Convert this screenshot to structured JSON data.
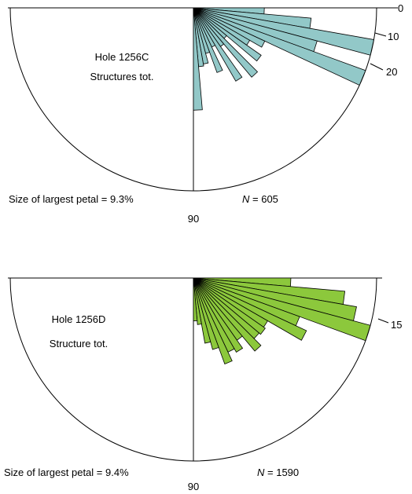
{
  "chart_data": [
    {
      "type": "rose",
      "title": "Hole 1256C",
      "subtitle": "Structures tot.",
      "angle_unit": "degrees",
      "direction_range": [
        0,
        90
      ],
      "direction_tick_labels": [
        "0",
        "90"
      ],
      "radial_ticks": [
        {
          "direction": 10,
          "label": "10"
        },
        {
          "direction": 20,
          "label": "20"
        }
      ],
      "petal_width_deg": 5,
      "petals": [
        {
          "direction": 0,
          "percent": 3.6
        },
        {
          "direction": 5,
          "percent": 6.0
        },
        {
          "direction": 10,
          "percent": 9.3
        },
        {
          "direction": 15,
          "percent": 6.5
        },
        {
          "direction": 20,
          "percent": 9.3
        },
        {
          "direction": 25,
          "percent": 4.0
        },
        {
          "direction": 30,
          "percent": 3.3
        },
        {
          "direction": 35,
          "percent": 4.2
        },
        {
          "direction": 40,
          "percent": 2.2
        },
        {
          "direction": 45,
          "percent": 4.6
        },
        {
          "direction": 50,
          "percent": 2.4
        },
        {
          "direction": 55,
          "percent": 4.3
        },
        {
          "direction": 60,
          "percent": 2.2
        },
        {
          "direction": 65,
          "percent": 3.5
        },
        {
          "direction": 70,
          "percent": 2.4
        },
        {
          "direction": 75,
          "percent": 2.9
        },
        {
          "direction": 80,
          "percent": 3.0
        },
        {
          "direction": 85,
          "percent": 5.2
        }
      ],
      "largest_petal_label": "Size of largest petal = 9.3%",
      "largest_petal_percent": 9.3,
      "n_prefix": "N",
      "n_value": "605",
      "color": "#92c8c8"
    },
    {
      "type": "rose",
      "title": "Hole 1256D",
      "subtitle": "Structure tot.",
      "angle_unit": "degrees",
      "direction_range": [
        0,
        90
      ],
      "direction_tick_labels": [
        "90"
      ],
      "radial_ticks": [
        {
          "direction": 15,
          "label": "15"
        }
      ],
      "petal_width_deg": 5,
      "petals": [
        {
          "direction": 0,
          "percent": 5.0
        },
        {
          "direction": 5,
          "percent": 7.8
        },
        {
          "direction": 10,
          "percent": 8.5
        },
        {
          "direction": 15,
          "percent": 9.4
        },
        {
          "direction": 20,
          "percent": 5.8
        },
        {
          "direction": 25,
          "percent": 6.4
        },
        {
          "direction": 30,
          "percent": 4.4
        },
        {
          "direction": 35,
          "percent": 4.5
        },
        {
          "direction": 40,
          "percent": 4.4
        },
        {
          "direction": 45,
          "percent": 4.9
        },
        {
          "direction": 50,
          "percent": 3.9
        },
        {
          "direction": 55,
          "percent": 4.4
        },
        {
          "direction": 60,
          "percent": 4.2
        },
        {
          "direction": 65,
          "percent": 4.7
        },
        {
          "direction": 70,
          "percent": 3.8
        },
        {
          "direction": 75,
          "percent": 3.4
        },
        {
          "direction": 80,
          "percent": 2.4
        },
        {
          "direction": 85,
          "percent": 2.2
        }
      ],
      "largest_petal_label": "Size of largest petal = 9.4%",
      "largest_petal_percent": 9.4,
      "n_prefix": "N",
      "n_value": "1590",
      "color": "#8cc83c"
    }
  ]
}
